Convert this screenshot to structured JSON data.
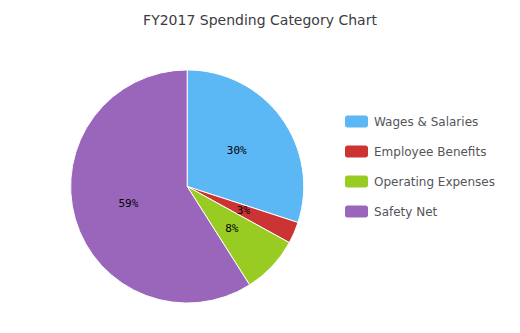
{
  "chart_data": {
    "type": "pie",
    "title": "FY2017 Spending Category Chart",
    "categories": [
      "Wages & Salaries",
      "Employee Benefits",
      "Operating Expenses",
      "Safety Net"
    ],
    "values": [
      30,
      3,
      8,
      59
    ],
    "value_labels": [
      "30%",
      "3%",
      "8%",
      "59%"
    ],
    "colors": [
      "#5bb8f5",
      "#cc3333",
      "#99cc22",
      "#9966bb"
    ],
    "data_labels": true,
    "legend": "right"
  }
}
